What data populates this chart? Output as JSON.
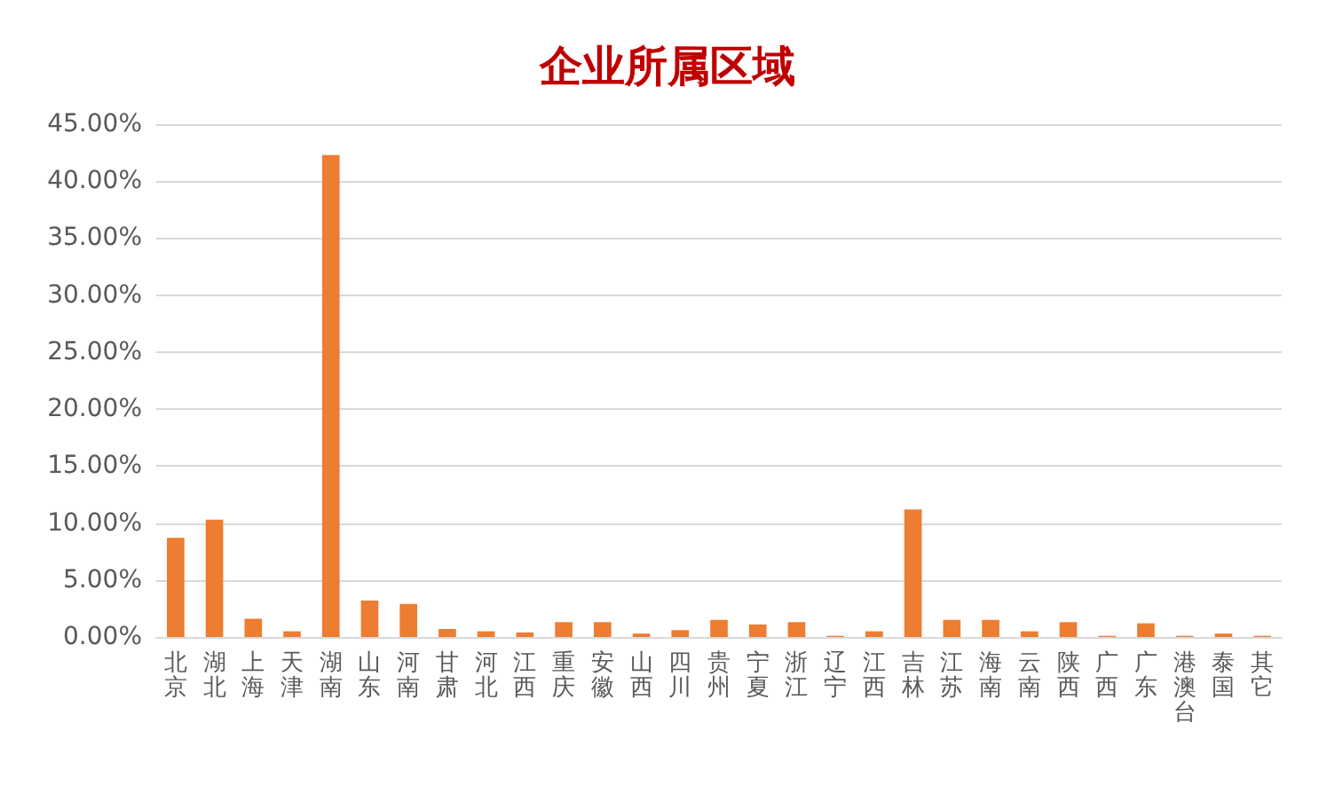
{
  "chart_data": {
    "type": "bar",
    "title": "企业所属区域",
    "categories": [
      "北京",
      "湖北",
      "上海",
      "天津",
      "湖南",
      "山东",
      "河南",
      "甘肃",
      "河北",
      "江西",
      "重庆",
      "安徽",
      "山西",
      "四川",
      "贵州",
      "宁夏",
      "浙江",
      "辽宁",
      "江西",
      "吉林",
      "江苏",
      "海南",
      "云南",
      "陕西",
      "广西",
      "广东",
      "港澳台",
      "泰国",
      "其它"
    ],
    "values": [
      8.7,
      10.3,
      1.6,
      0.5,
      42.3,
      3.2,
      2.9,
      0.7,
      0.5,
      0.4,
      1.3,
      1.3,
      0.3,
      0.6,
      1.5,
      1.1,
      1.3,
      0.1,
      0.5,
      11.2,
      1.5,
      1.5,
      0.5,
      1.3,
      0.1,
      1.2,
      0.1,
      0.3,
      0.1
    ],
    "color": "#ed7d31",
    "ylim": [
      0,
      45
    ],
    "yticks": [
      {
        "value": 0,
        "label": "0.00%"
      },
      {
        "value": 5,
        "label": "5.00%"
      },
      {
        "value": 10,
        "label": "10.00%"
      },
      {
        "value": 15,
        "label": "15.00%"
      },
      {
        "value": 20,
        "label": "20.00%"
      },
      {
        "value": 25,
        "label": "25.00%"
      },
      {
        "value": 30,
        "label": "30.00%"
      },
      {
        "value": 35,
        "label": "35.00%"
      },
      {
        "value": 40,
        "label": "40.00%"
      },
      {
        "value": 45,
        "label": "45.00%"
      }
    ],
    "grid": "y"
  }
}
